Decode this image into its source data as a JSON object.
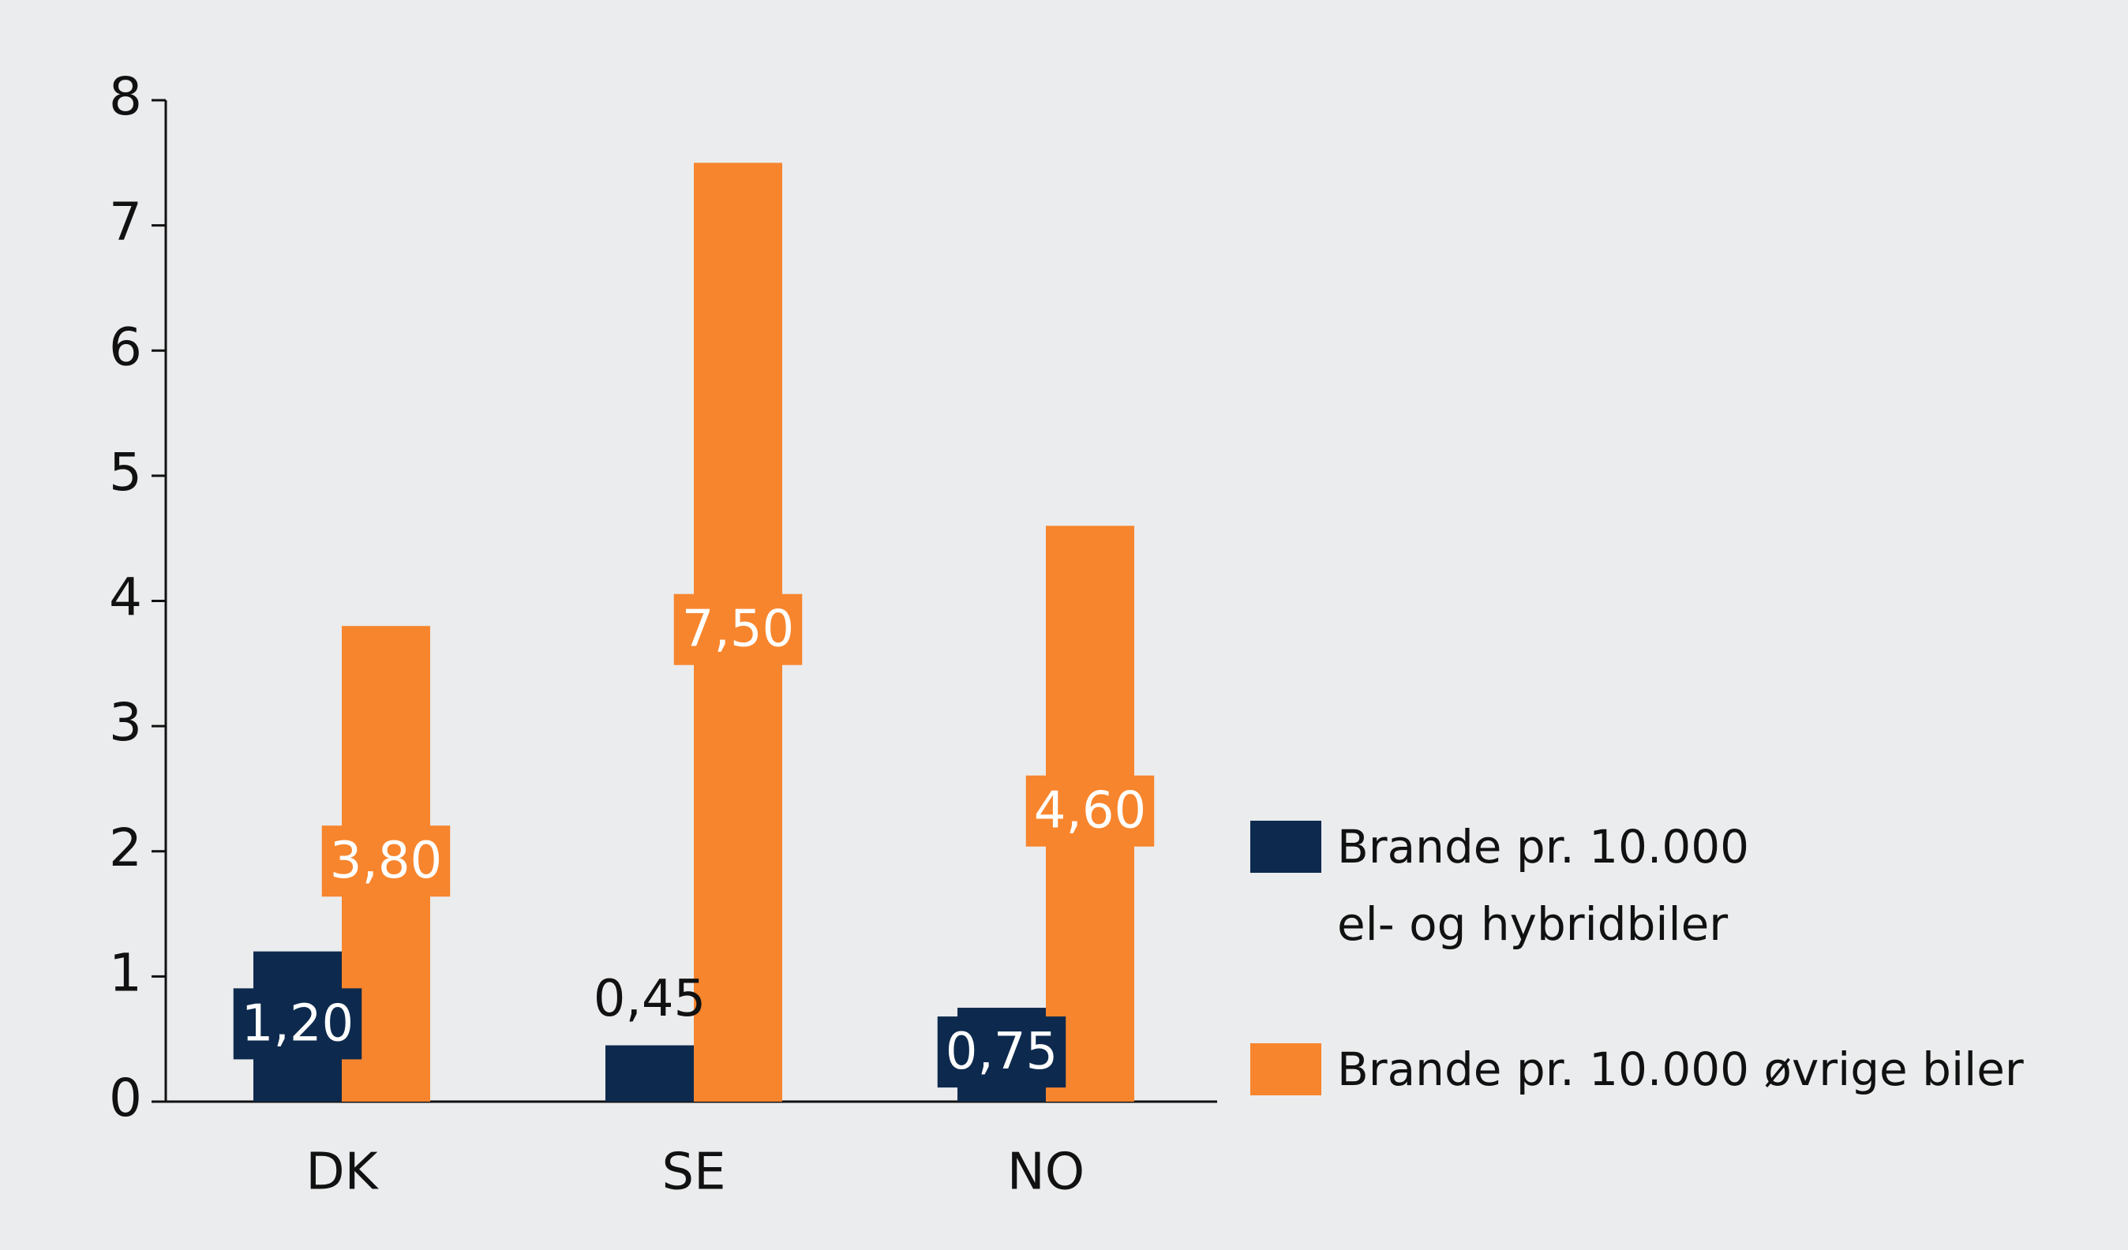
{
  "chart_data": {
    "type": "bar",
    "categories": [
      "DK",
      "SE",
      "NO"
    ],
    "series": [
      {
        "name": "Brande pr. 10.000\nel- og hybridbiler",
        "color": "#0d2a4e",
        "values": [
          1.2,
          0.45,
          0.75
        ],
        "value_labels": [
          "1,20",
          "0,45",
          "0,75"
        ]
      },
      {
        "name": "Brande pr. 10.000 øvrige biler",
        "color": "#f7852d",
        "values": [
          3.8,
          7.5,
          4.6
        ],
        "value_labels": [
          "3,80",
          "7,50",
          "4,60"
        ]
      }
    ],
    "ylim": [
      0,
      8
    ],
    "yticks": [
      0,
      1,
      2,
      3,
      4,
      5,
      6,
      7,
      8
    ],
    "legend": "right"
  }
}
